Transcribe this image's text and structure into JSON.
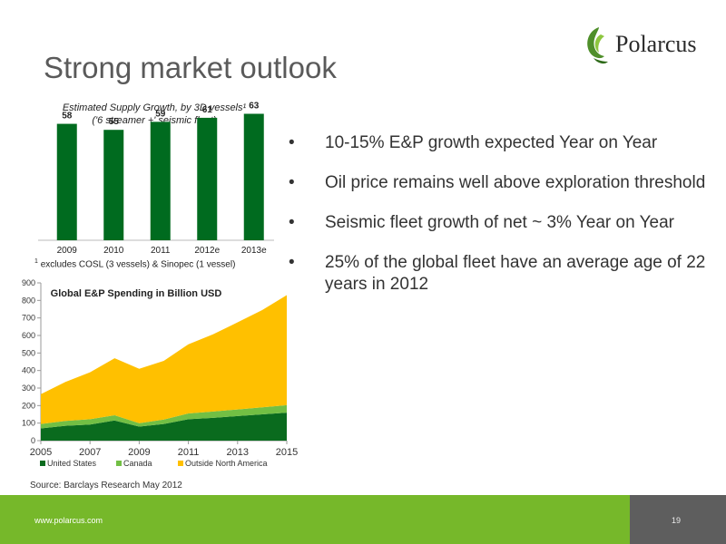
{
  "slide": {
    "title": "Strong market outlook",
    "logo_text": "Polarcus",
    "bullets": [
      "10-15% E&P growth expected Year on Year",
      "Oil price remains well above exploration threshold",
      "Seismic fleet growth of net ~ 3% Year on Year",
      "25% of the global fleet have an average age of 22 years in 2012"
    ],
    "bullet_symbol": "•",
    "footnote_marker": "1",
    "footnote": "excludes COSL (3 vessels) & Sinopec (1 vessel)",
    "source": "Source: Barclays Research May 2012",
    "footer_url": "www.polarcus.com",
    "page_number": "19"
  },
  "colors": {
    "title": "#5a5a5a",
    "bar": "#006b1f",
    "united_states": "#0a6b1e",
    "canada": "#72bf44",
    "outside_north_america": "#ffc000",
    "footer_green": "#76b82a",
    "footer_grey": "#5e5e5e"
  },
  "chart_data": [
    {
      "type": "bar",
      "title": "Estimated Supply Growth, by 3D vessels¹",
      "subtitle": "('6 streamer +' seismic fleet)",
      "categories": [
        "2009",
        "2010",
        "2011",
        "2012e",
        "2013e"
      ],
      "values": [
        58,
        55,
        59,
        61,
        63
      ],
      "data_labels": [
        "58",
        "55",
        "59",
        "61",
        "63"
      ],
      "ylim": [
        0,
        70
      ],
      "grid": false,
      "legend": "none"
    },
    {
      "type": "area",
      "stacked": true,
      "title": "Global E&P Spending in Billion USD",
      "x": [
        2005,
        2006,
        2007,
        2008,
        2009,
        2010,
        2011,
        2012,
        2013,
        2014,
        2015
      ],
      "xticks": [
        "2005",
        "2007",
        "2009",
        "2011",
        "2013",
        "2015"
      ],
      "yticks": [
        "0",
        "100",
        "200",
        "300",
        "400",
        "500",
        "600",
        "700",
        "800",
        "900"
      ],
      "ylim": [
        0,
        900
      ],
      "series": [
        {
          "name": "United States",
          "values": [
            70,
            85,
            92,
            115,
            80,
            95,
            122,
            130,
            140,
            150,
            160
          ]
        },
        {
          "name": "Canada",
          "values": [
            25,
            28,
            30,
            30,
            20,
            25,
            33,
            36,
            38,
            40,
            42
          ]
        },
        {
          "name": "Outside North America",
          "values": [
            170,
            222,
            268,
            325,
            310,
            335,
            395,
            440,
            497,
            555,
            628
          ]
        }
      ],
      "grid": false,
      "legend": "bottom"
    }
  ]
}
